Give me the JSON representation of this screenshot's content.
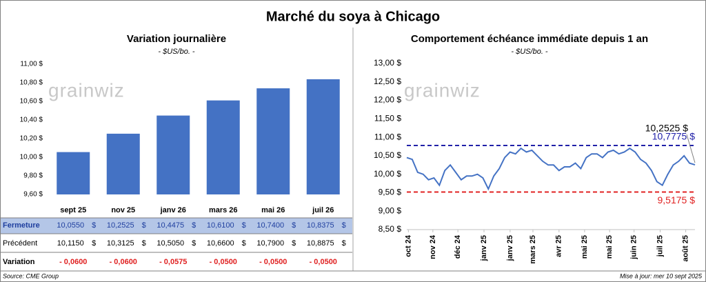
{
  "title": "Marché du soya à Chicago",
  "watermark": "grainwiz",
  "chart_data": [
    {
      "type": "bar",
      "title": "Variation journalière",
      "subtitle": "- $US/bo. -",
      "categories": [
        "sept 25",
        "nov 25",
        "janv 26",
        "mars 26",
        "mai 26",
        "juil 26"
      ],
      "values": [
        10.055,
        10.2525,
        10.4475,
        10.61,
        10.74,
        10.8375
      ],
      "color": "#4472c4",
      "grid": false,
      "ylim": [
        9.6,
        11.0
      ],
      "yticks": [
        {
          "value": 9.6,
          "label": "9,60 $"
        },
        {
          "value": 9.8,
          "label": "9,80 $"
        },
        {
          "value": 10.0,
          "label": "10,00 $"
        },
        {
          "value": 10.2,
          "label": "10,20 $"
        },
        {
          "value": 10.4,
          "label": "10,40 $"
        },
        {
          "value": 10.6,
          "label": "10,60 $"
        },
        {
          "value": 10.8,
          "label": "10,80 $"
        },
        {
          "value": 11.0,
          "label": "11,00 $"
        }
      ]
    },
    {
      "type": "line",
      "title": "Comportement échéance immédiate depuis 1 an",
      "subtitle": "- $US/bo. -",
      "values": [
        10.45,
        10.4,
        10.05,
        10.0,
        9.85,
        9.9,
        9.7,
        10.1,
        10.25,
        10.05,
        9.85,
        9.95,
        9.95,
        10.0,
        9.9,
        9.6,
        9.95,
        10.15,
        10.45,
        10.6,
        10.55,
        10.7,
        10.6,
        10.65,
        10.5,
        10.35,
        10.25,
        10.25,
        10.1,
        10.2,
        10.2,
        10.3,
        10.15,
        10.45,
        10.55,
        10.55,
        10.45,
        10.6,
        10.65,
        10.55,
        10.6,
        10.7,
        10.6,
        10.4,
        10.3,
        10.1,
        9.8,
        9.7,
        10.0,
        10.25,
        10.35,
        10.5,
        10.3,
        10.2525
      ],
      "value_labels": {
        "53": "10,2525 $"
      },
      "color": "#4472c4",
      "grid": false,
      "xlim": [
        0,
        53
      ],
      "xticks": [
        {
          "value": 0.3,
          "label": "oct 24"
        },
        {
          "value": 4.8,
          "label": "nov 24"
        },
        {
          "value": 9.4,
          "label": "déc 24"
        },
        {
          "value": 14.2,
          "label": "janv 25"
        },
        {
          "value": 19.0,
          "label": "janv 25"
        },
        {
          "value": 23.2,
          "label": "mars 25"
        },
        {
          "value": 28.0,
          "label": "avr 25"
        },
        {
          "value": 32.7,
          "label": "mai 25"
        },
        {
          "value": 37.3,
          "label": "mai 25"
        },
        {
          "value": 41.8,
          "label": "juin 25"
        },
        {
          "value": 46.6,
          "label": "juil 25"
        },
        {
          "value": 51.3,
          "label": "août 25"
        }
      ],
      "ylim": [
        8.5,
        13.0
      ],
      "yticks": [
        {
          "value": 8.5,
          "label": "8,50 $"
        },
        {
          "value": 9.0,
          "label": "9,00 $"
        },
        {
          "value": 9.5,
          "label": "9,50 $"
        },
        {
          "value": 10.0,
          "label": "10,00 $"
        },
        {
          "value": 10.5,
          "label": "10,50 $"
        },
        {
          "value": 11.0,
          "label": "11,00 $"
        },
        {
          "value": 11.5,
          "label": "11,50 $"
        },
        {
          "value": 12.0,
          "label": "12,00 $"
        },
        {
          "value": 12.5,
          "label": "12,50 $"
        },
        {
          "value": 13.0,
          "label": "13,00 $"
        }
      ],
      "reference_lines": [
        {
          "value": 10.7775,
          "label": "10,7775 $",
          "color": "#2020a8"
        },
        {
          "value": 9.5175,
          "label": "9,5175 $",
          "color": "#e02020"
        }
      ]
    }
  ],
  "table": {
    "rows": [
      {
        "label": "Fermeture",
        "unit": "$",
        "cells": [
          "10,0550",
          "10,2525",
          "10,4475",
          "10,6100",
          "10,7400",
          "10,8375"
        ]
      },
      {
        "label": "Précédent",
        "unit": "$",
        "cells": [
          "10,1150",
          "10,3125",
          "10,5050",
          "10,6600",
          "10,7900",
          "10,8875"
        ]
      },
      {
        "label": "Variation",
        "cells": [
          "- 0,0600",
          "- 0,0600",
          "- 0,0575",
          "- 0,0500",
          "- 0,0500",
          "- 0,0500"
        ]
      }
    ]
  },
  "source": "Source: CME Group",
  "updated": "Mise à jour: mer 10 sept 2025"
}
